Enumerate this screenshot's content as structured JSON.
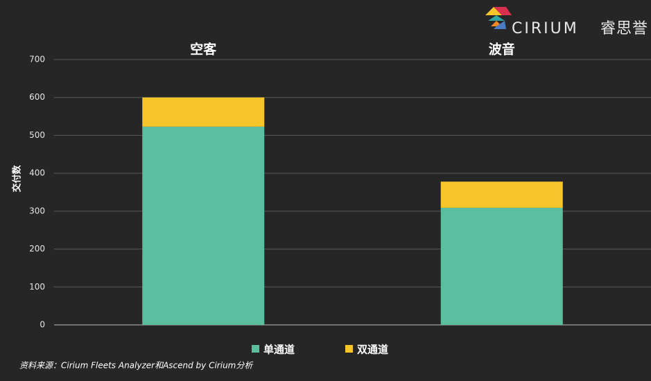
{
  "chart_data": {
    "type": "stacked_bar",
    "y_label": "交付数",
    "categories": [
      "空客",
      "波音"
    ],
    "series": [
      {
        "name": "单通道",
        "color": "#5bbf9f",
        "values": [
          523,
          309
        ]
      },
      {
        "name": "双通道",
        "color": "#f5c52a",
        "values": [
          77,
          69
        ]
      }
    ],
    "ylim": [
      0,
      700
    ],
    "yticks": [
      0,
      100,
      200,
      300,
      400,
      500,
      600,
      700
    ],
    "grid": true,
    "source": "资料来源：Cirium Fleets Analyzer和Ascend by Cirium分析"
  },
  "brand": {
    "name": "CIRIUM",
    "name_cn": "睿思誉"
  }
}
